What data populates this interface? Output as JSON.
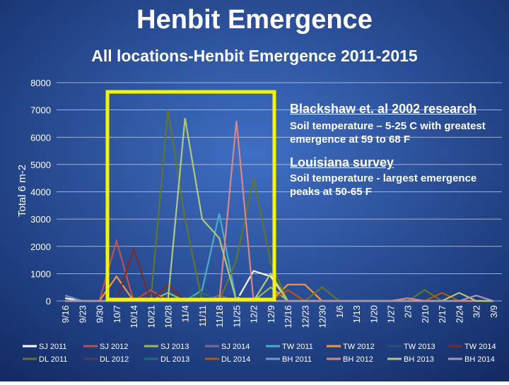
{
  "chart_data": {
    "type": "line",
    "title": "Henbit Emergence",
    "subtitle": "All locations-Henbit Emergence 2011-2015",
    "y_label": "Total 6 m-2",
    "annotations": [
      "Blackshaw et. al 2002 research",
      "Soil temperature – 5-25 C with greatest emergence at 59 to 68 F",
      "Louisiana survey",
      "Soil temperature -  largest emergence peaks at 50-65 F"
    ],
    "categories": [
      "9/16",
      "9/23",
      "9/30",
      "10/7",
      "10/14",
      "10/21",
      "10/28",
      "11/4",
      "11/11",
      "11/18",
      "11/25",
      "12/2",
      "12/9",
      "12/16",
      "12/23",
      "12/30",
      "1/6",
      "1/13",
      "1/20",
      "1/27",
      "2/3",
      "2/10",
      "2/17",
      "2/24",
      "3/2",
      "3/9"
    ],
    "ylim": [
      0,
      8000
    ],
    "yticks": [
      0,
      1000,
      2000,
      3000,
      4000,
      5000,
      6000,
      7000,
      8000
    ],
    "grid": true,
    "series": [
      {
        "name": "SJ 2011",
        "color": "#ffffff",
        "values": [
          100,
          0,
          0,
          0,
          0,
          0,
          0,
          0,
          0,
          0,
          0,
          1100,
          900,
          0,
          0,
          0,
          0,
          0,
          0,
          0,
          0,
          0,
          0,
          0,
          0,
          0
        ]
      },
      {
        "name": "SJ 2012",
        "color": "#c0504d",
        "values": [
          0,
          0,
          0,
          2200,
          0,
          400,
          0,
          0,
          0,
          0,
          0,
          0,
          0,
          0,
          0,
          0,
          0,
          0,
          0,
          0,
          0,
          0,
          0,
          0,
          0,
          0
        ]
      },
      {
        "name": "SJ 2013",
        "color": "#9bbb59",
        "values": [
          0,
          0,
          0,
          0,
          0,
          0,
          300,
          0,
          0,
          0,
          0,
          0,
          500,
          0,
          0,
          0,
          0,
          0,
          0,
          0,
          0,
          0,
          0,
          0,
          0,
          0
        ]
      },
      {
        "name": "SJ 2014",
        "color": "#8064a2",
        "values": [
          0,
          0,
          0,
          0,
          0,
          0,
          0,
          0,
          0,
          200,
          0,
          0,
          0,
          0,
          0,
          0,
          0,
          0,
          0,
          0,
          0,
          0,
          0,
          0,
          0,
          0
        ]
      },
      {
        "name": "TW 2011",
        "color": "#4bacc6",
        "values": [
          0,
          0,
          0,
          0,
          0,
          0,
          0,
          0,
          400,
          3200,
          0,
          0,
          0,
          0,
          0,
          0,
          0,
          0,
          0,
          0,
          0,
          0,
          0,
          0,
          0,
          0
        ]
      },
      {
        "name": "TW 2012",
        "color": "#f79646",
        "values": [
          0,
          0,
          0,
          900,
          0,
          0,
          0,
          0,
          0,
          0,
          0,
          0,
          0,
          600,
          600,
          0,
          0,
          0,
          0,
          0,
          0,
          0,
          0,
          0,
          0,
          0
        ]
      },
      {
        "name": "TW 2013",
        "color": "#2c4d75",
        "values": [
          0,
          0,
          0,
          0,
          0,
          0,
          0,
          0,
          0,
          0,
          200,
          0,
          0,
          0,
          0,
          0,
          0,
          0,
          0,
          0,
          0,
          0,
          0,
          0,
          0,
          0
        ]
      },
      {
        "name": "TW 2014",
        "color": "#772c2a",
        "values": [
          0,
          0,
          0,
          0,
          1900,
          0,
          600,
          0,
          0,
          0,
          0,
          0,
          0,
          0,
          0,
          0,
          0,
          0,
          0,
          0,
          0,
          0,
          0,
          0,
          0,
          0
        ]
      },
      {
        "name": "DL 2011",
        "color": "#5f7530",
        "values": [
          0,
          0,
          0,
          0,
          0,
          0,
          7000,
          3000,
          0,
          0,
          1500,
          4500,
          1400,
          0,
          0,
          500,
          0,
          0,
          0,
          0,
          0,
          400,
          0,
          0,
          0,
          0
        ]
      },
      {
        "name": "DL 2012",
        "color": "#4d3b62",
        "values": [
          0,
          0,
          0,
          0,
          0,
          300,
          0,
          0,
          0,
          0,
          0,
          0,
          0,
          0,
          0,
          0,
          0,
          0,
          0,
          0,
          0,
          0,
          0,
          0,
          0,
          0
        ]
      },
      {
        "name": "DL 2013",
        "color": "#276a7c",
        "values": [
          0,
          0,
          0,
          0,
          0,
          0,
          0,
          0,
          300,
          0,
          0,
          0,
          0,
          0,
          0,
          0,
          0,
          0,
          0,
          0,
          0,
          0,
          0,
          0,
          0,
          0
        ]
      },
      {
        "name": "DL 2014",
        "color": "#b65708",
        "values": [
          0,
          0,
          0,
          0,
          0,
          0,
          0,
          0,
          0,
          0,
          0,
          0,
          0,
          400,
          0,
          0,
          0,
          0,
          0,
          0,
          0,
          0,
          300,
          0,
          0,
          0
        ]
      },
      {
        "name": "BH 2011",
        "color": "#729aca",
        "values": [
          200,
          0,
          0,
          0,
          0,
          0,
          0,
          0,
          0,
          0,
          0,
          0,
          0,
          0,
          0,
          0,
          0,
          0,
          0,
          0,
          0,
          0,
          0,
          0,
          0,
          0
        ]
      },
      {
        "name": "BH 2012",
        "color": "#dc8584",
        "values": [
          0,
          0,
          0,
          0,
          0,
          0,
          0,
          0,
          0,
          0,
          6600,
          0,
          0,
          0,
          0,
          0,
          0,
          0,
          0,
          0,
          100,
          0,
          0,
          0,
          0,
          0
        ]
      },
      {
        "name": "BH 2013",
        "color": "#afc97a",
        "values": [
          0,
          0,
          0,
          0,
          0,
          0,
          0,
          6700,
          3000,
          2300,
          0,
          0,
          1000,
          0,
          0,
          0,
          0,
          0,
          0,
          0,
          0,
          0,
          0,
          300,
          0,
          0
        ]
      },
      {
        "name": "BH 2014",
        "color": "#a597b9",
        "values": [
          0,
          0,
          0,
          0,
          0,
          0,
          0,
          0,
          0,
          0,
          0,
          0,
          0,
          0,
          0,
          0,
          0,
          0,
          0,
          0,
          0,
          0,
          0,
          0,
          200,
          0
        ]
      }
    ]
  }
}
